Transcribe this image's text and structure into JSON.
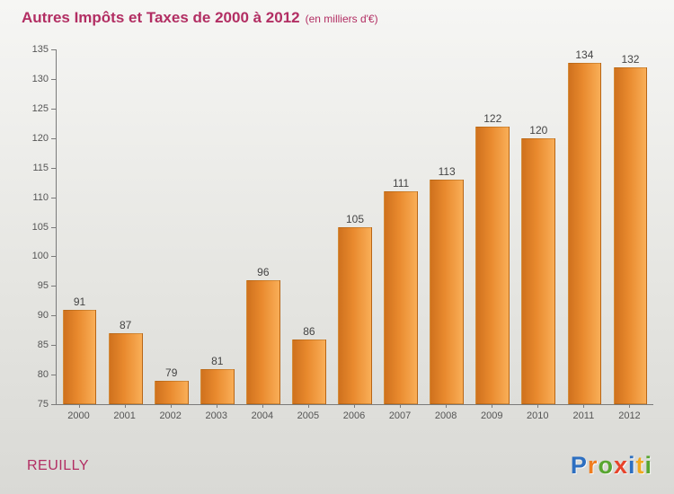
{
  "chart_data": {
    "type": "bar",
    "title": "Autres Impôts et Taxes de 2000 à 2012",
    "subtitle": "(en milliers d'€)",
    "categories": [
      "2000",
      "2001",
      "2002",
      "2003",
      "2004",
      "2005",
      "2006",
      "2007",
      "2008",
      "2009",
      "2010",
      "2011",
      "2012"
    ],
    "values": [
      91,
      87,
      79,
      81,
      96,
      86,
      105,
      111,
      113,
      122,
      120,
      134,
      132
    ],
    "xlabel": "",
    "ylabel": "",
    "ylim": [
      75,
      135
    ],
    "ytick_step": 5,
    "grid": false,
    "legend": "none",
    "bar_color_start": "#cf711d",
    "bar_color_end": "#f9ae57",
    "value_label_color": "#444444",
    "axis_label_color": "#555555",
    "title_color": "#b22e63"
  },
  "footer": {
    "location": "REUILLY",
    "logo_letters": [
      {
        "ch": "P",
        "color": "#2d6fc1"
      },
      {
        "ch": "r",
        "color": "#f07d1f"
      },
      {
        "ch": "o",
        "color": "#58a631"
      },
      {
        "ch": "x",
        "color": "#e8432a"
      },
      {
        "ch": "i",
        "color": "#2d6fc1"
      },
      {
        "ch": "t",
        "color": "#f0a81f"
      },
      {
        "ch": "i",
        "color": "#58a631"
      }
    ]
  }
}
